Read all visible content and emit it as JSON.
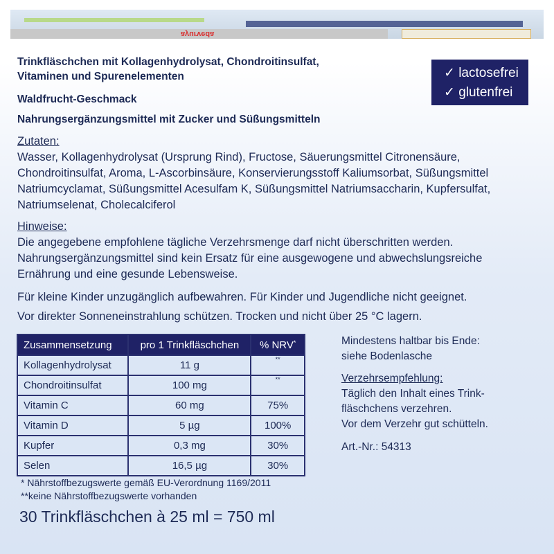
{
  "top_flap": {
    "brand": "ayurveda"
  },
  "badge": {
    "items": [
      "lactosefrei",
      "glutenfrei"
    ],
    "icon": "check-icon",
    "color": "#1f2266"
  },
  "heading": {
    "line1": "Trinkfläschchen mit Kollagenhydrolysat, Chondroitinsulfat,",
    "line2": "Vitaminen und Spurenelementen",
    "flavor": "Waldfrucht-Geschmack",
    "category": "Nahrungsergänzungsmittel mit Zucker und Süßungsmitteln"
  },
  "ingredients": {
    "label": "Zutaten:",
    "lines": [
      "Wasser, Kollagenhydrolysat (Ursprung Rind), Fructose, Säuerungsmittel Citronensäure,",
      "Chondroitinsulfat, Aroma, L-Ascorbinsäure, Konservierungsstoff Kaliumsorbat, Süßungsmittel",
      "Natriumcyclamat, Süßungsmittel Acesulfam K, Süßungsmittel Natriumsaccharin, Kupfersulfat,",
      "Natriumselenat, Cholecalciferol"
    ]
  },
  "notes": {
    "label": "Hinweise:",
    "lines": [
      "Die angegebene empfohlene tägliche Verzehrsmenge darf nicht überschritten werden.",
      "Nahrungsergänzungsmittel sind kein Ersatz für eine ausgewogene und abwechslungsreiche",
      "Ernährung und eine gesunde Lebensweise."
    ],
    "children": "Für kleine Kinder unzugänglich aufbewahren. Für Kinder und Jugendliche nicht geeignet.",
    "storage": "Vor direkter Sonneneinstrahlung schützen. Trocken und nicht über 25 °C lagern."
  },
  "table": {
    "headers": [
      "Zusammensetzung",
      "pro 1 Trinkfläschchen",
      "% NRV",
      "*"
    ],
    "rows": [
      [
        "Kollagenhydrolysat",
        "11 g",
        "**"
      ],
      [
        "Chondroitinsulfat",
        "100 mg",
        "**"
      ],
      [
        "Vitamin C",
        "60 mg",
        "75%"
      ],
      [
        "Vitamin D",
        "5 µg",
        "100%"
      ],
      [
        "Kupfer",
        "0,3 mg",
        "30%"
      ],
      [
        "Selen",
        "16,5 µg",
        "30%"
      ]
    ]
  },
  "footnotes": [
    "* Nährstoffbezugswerte gemäß EU-Verordnung 1169/2011",
    "**keine Nährstoffbezugswerte vorhanden"
  ],
  "right": {
    "best_before": [
      "Mindestens haltbar bis Ende:",
      "siehe Bodenlasche"
    ],
    "usage_label": "Verzehrsempfehlung:",
    "usage_lines": [
      "Täglich den Inhalt eines Trink-",
      "fläschchens verzehren.",
      "Vor dem Verzehr gut schütteln."
    ],
    "art_nr": "Art.-Nr.: 54313"
  },
  "quantity": "30  Trinkfläschchen à 25 ml = 750 ml"
}
